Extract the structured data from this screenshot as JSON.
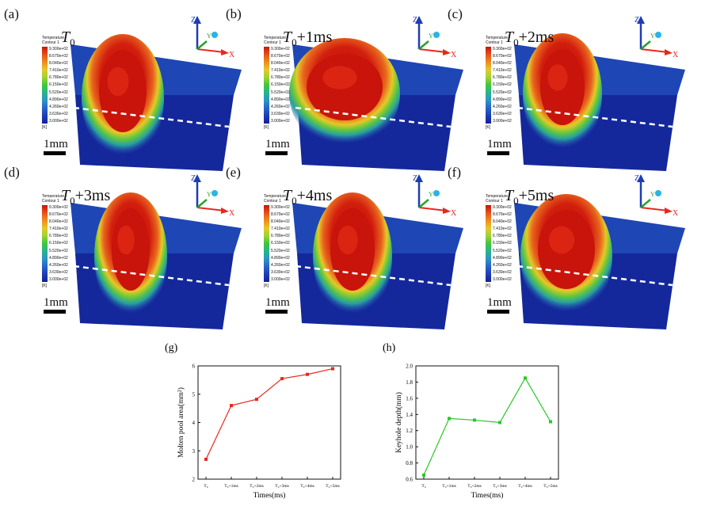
{
  "panels": [
    {
      "label": "(a)",
      "time_main": "T",
      "time_sub": "0",
      "time_suffix": "",
      "scale": "1mm"
    },
    {
      "label": "(b)",
      "time_main": "T",
      "time_sub": "0",
      "time_suffix": "+1ms",
      "scale": "1mm"
    },
    {
      "label": "(c)",
      "time_main": "T",
      "time_sub": "0",
      "time_suffix": "+2ms",
      "scale": "1mm"
    },
    {
      "label": "(d)",
      "time_main": "T",
      "time_sub": "0",
      "time_suffix": "+3ms",
      "scale": "1mm"
    },
    {
      "label": "(e)",
      "time_main": "T",
      "time_sub": "0",
      "time_suffix": "+4ms",
      "scale": "1mm"
    },
    {
      "label": "(f)",
      "time_main": "T",
      "time_sub": "0",
      "time_suffix": "+5ms",
      "scale": "1mm"
    }
  ],
  "legend": {
    "title1": "Temperature",
    "title2": "Contour 1",
    "ticks": [
      "9.300e+02",
      "8.670e+02",
      "8.040e+02",
      "7.410e+02",
      "6.780e+02",
      "6.150e+02",
      "5.520e+02",
      "4.890e+02",
      "4.260e+02",
      "3.630e+02",
      "3.000e+02"
    ],
    "unit": "[K]"
  },
  "axes": {
    "z": "Z",
    "y": "Y",
    "x": "X"
  },
  "chart_data": [
    {
      "type": "line",
      "panel_label": "(g)",
      "categories": [
        "T₀",
        "T₀+1ms",
        "T₀+2ms",
        "T₀+3ms",
        "T₀+4ms",
        "T₀+5ms"
      ],
      "values": [
        2.7,
        4.6,
        4.82,
        5.55,
        5.7,
        5.9
      ],
      "xlabel": "Times(ms)",
      "ylabel": "Molten pool area(mm²)",
      "ylim": [
        2,
        6
      ],
      "yticks": [
        "2",
        "3",
        "4",
        "5",
        "6"
      ],
      "color": "#e8281e"
    },
    {
      "type": "line",
      "panel_label": "(h)",
      "categories": [
        "T₀",
        "T₀+1ms",
        "T₀+2ms",
        "T₀+3ms",
        "T₀+4ms",
        "T₀+5ms"
      ],
      "values": [
        0.65,
        1.35,
        1.33,
        1.3,
        1.85,
        1.31
      ],
      "xlabel": "Times(ms)",
      "ylabel": "Keyhole depth(mm)",
      "ylim": [
        0.6,
        2.0
      ],
      "yticks": [
        "0.6",
        "0.8",
        "1.0",
        "1.2",
        "1.4",
        "1.6",
        "1.8",
        "2.0"
      ],
      "color": "#28c828"
    }
  ]
}
